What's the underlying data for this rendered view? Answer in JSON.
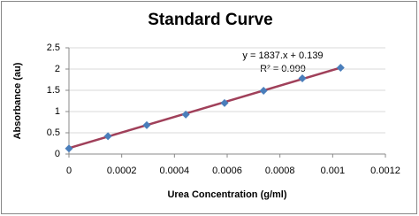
{
  "chart_data": {
    "type": "scatter",
    "title": "Standard Curve",
    "x_label": "Urea Concentration (g/ml)",
    "y_label": "Absorbance (au)",
    "series": [
      {
        "name": "Absorbance",
        "color": "#4a7ebb",
        "x": [
          0,
          0.000148,
          0.000295,
          0.000443,
          0.00059,
          0.000738,
          0.000885,
          0.00103
        ],
        "values": [
          0.13,
          0.42,
          0.68,
          0.93,
          1.2,
          1.49,
          1.78,
          2.03
        ]
      }
    ],
    "trendline": {
      "slope": 1837,
      "intercept": 0.139,
      "color": "#a0405a",
      "equation": "y = 1837.x + 0.139",
      "r2": "R² = 0.999"
    },
    "xlim": [
      0,
      0.0012
    ],
    "xticks": [
      0,
      0.0002,
      0.0004,
      0.0006,
      0.0008,
      0.001,
      0.0012
    ],
    "ylim": [
      0,
      2.5
    ],
    "yticks": [
      0,
      0.5,
      1,
      1.5,
      2,
      2.5
    ],
    "grid": true
  }
}
